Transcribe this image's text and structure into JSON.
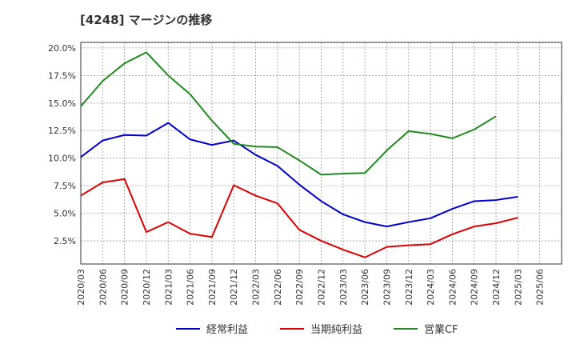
{
  "chart_data": {
    "type": "line",
    "title": "[4248]  マージンの推移",
    "xlabel": "",
    "ylabel": "",
    "x": [
      "2020/03",
      "2020/06",
      "2020/09",
      "2020/12",
      "2021/03",
      "2021/06",
      "2021/09",
      "2021/12",
      "2022/03",
      "2022/06",
      "2022/09",
      "2022/12",
      "2023/03",
      "2023/06",
      "2023/09",
      "2023/12",
      "2024/03",
      "2024/06",
      "2024/09",
      "2024/12",
      "2025/03",
      "2025/06"
    ],
    "ylim": [
      0.4,
      20.5
    ],
    "yticks": [
      2.5,
      5.0,
      7.5,
      10.0,
      12.5,
      15.0,
      17.5,
      20.0
    ],
    "ytick_labels": [
      "2.5%",
      "5.0%",
      "7.5%",
      "10.0%",
      "12.5%",
      "15.0%",
      "17.5%",
      "20.0%"
    ],
    "grid": true,
    "legend_position": "bottom",
    "series": [
      {
        "name": "経常利益",
        "color": "#0000cc",
        "values": [
          10.1,
          11.6,
          12.1,
          12.05,
          13.2,
          11.7,
          11.2,
          11.6,
          10.3,
          9.3,
          7.6,
          6.1,
          4.9,
          4.2,
          3.8,
          4.2,
          4.55,
          5.4,
          6.1,
          6.2,
          6.5,
          null
        ]
      },
      {
        "name": "当期純利益",
        "color": "#dd0000",
        "values": [
          6.6,
          7.8,
          8.1,
          3.3,
          4.2,
          3.15,
          2.85,
          7.55,
          6.6,
          5.9,
          3.5,
          2.5,
          1.7,
          1.0,
          1.95,
          2.1,
          2.2,
          3.1,
          3.8,
          4.1,
          4.6,
          null
        ]
      },
      {
        "name": "営業CF",
        "color": "#228822",
        "values": [
          14.7,
          17.0,
          18.6,
          19.6,
          17.5,
          15.8,
          13.4,
          11.3,
          11.05,
          11.0,
          9.8,
          8.5,
          8.6,
          8.65,
          10.7,
          12.45,
          12.2,
          11.8,
          12.6,
          13.8,
          null,
          null
        ]
      }
    ]
  }
}
